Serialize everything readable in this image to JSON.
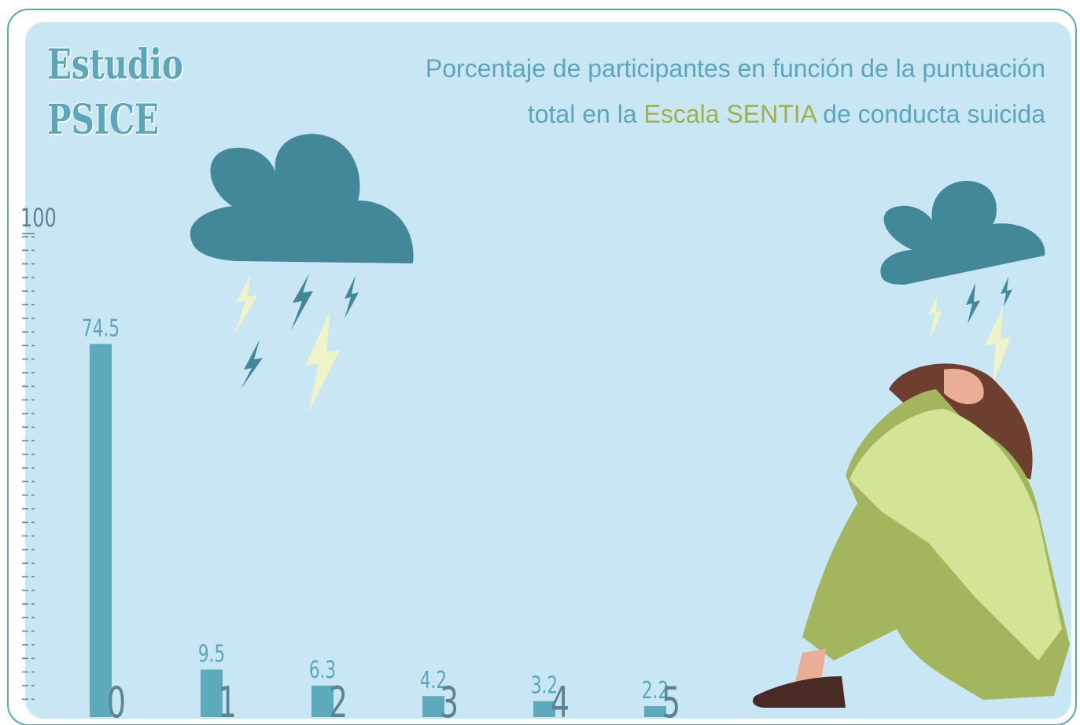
{
  "logo": [
    "Estudio",
    "PSICE"
  ],
  "chart_data": {
    "type": "bar",
    "title": [
      "Porcentaje de participantes en función de la puntuación",
      "total en la",
      "Escala SENTIA",
      "de conducta suicida"
    ],
    "categories": [
      "0",
      "1",
      "2",
      "3",
      "4",
      "5"
    ],
    "values": [
      74.5,
      9.5,
      6.3,
      4.2,
      3.2,
      2.2
    ],
    "color": "#5eaabd",
    "ylim": [
      0,
      100
    ],
    "yticks": [
      100
    ],
    "grid": false
  }
}
